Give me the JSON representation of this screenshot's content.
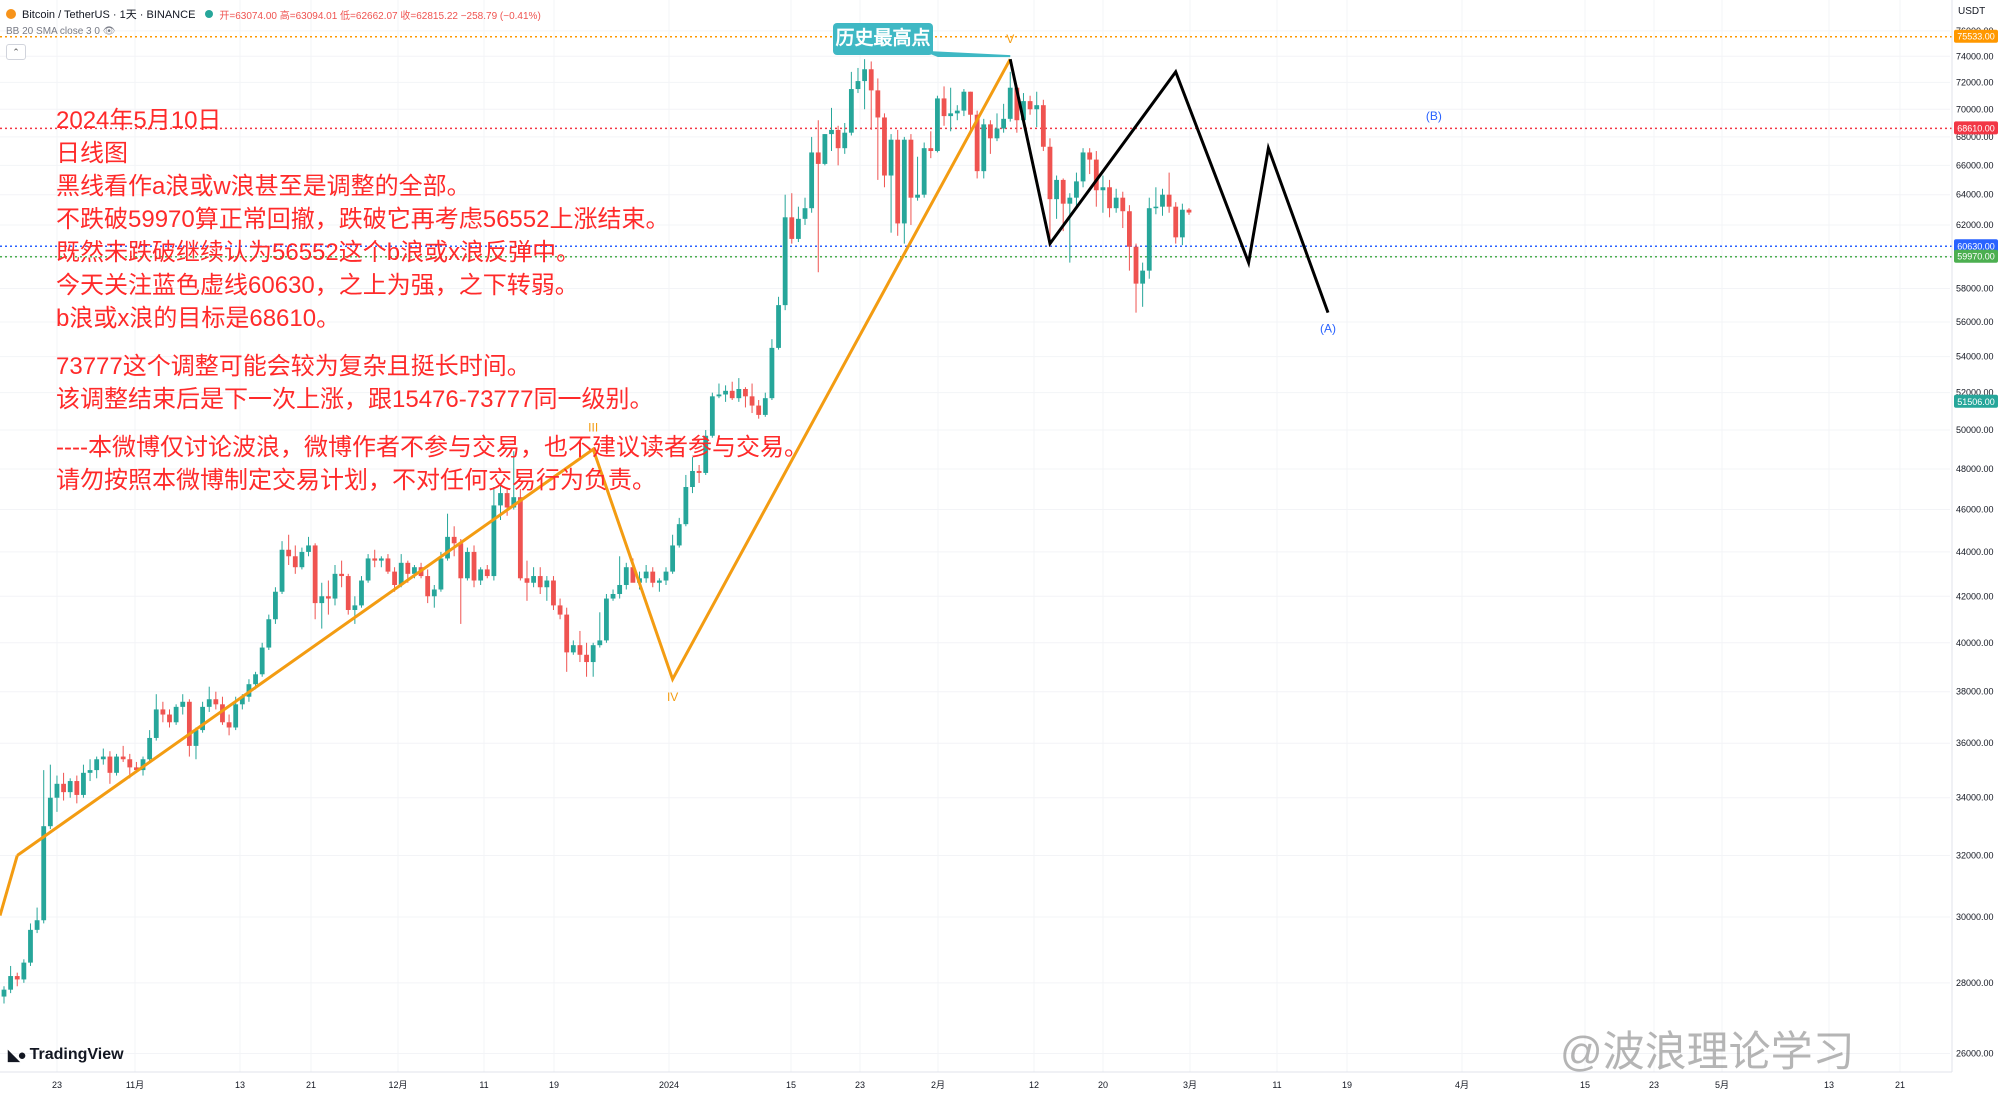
{
  "header": {
    "symbol": "Bitcoin / TetherUS · 1天 · BINANCE",
    "ohlc": "开=63074.00 高=63094.01 低=62662.07 收=62815.22 −258.79 (−0.41%)",
    "indicator": "BB 20 SMA close 3 0",
    "currency": "USDT"
  },
  "notes": [
    "2024年5月10日",
    "日线图",
    "黑线看作a浪或w浪甚至是调整的全部。",
    "不跌破59970算正常回撤，跌破它再考虑56552上涨结束。",
    "既然未跌破继续认为56552这个b浪或x浪反弹中。",
    "今天关注蓝色虚线60630，之上为强，之下转弱。",
    "b浪或x浪的目标是68610。",
    "73777这个调整可能会较为复杂且挺长时间。",
    "该调整结束后是下一次上涨，跟15476-73777同一级别。",
    "----本微博仅讨论波浪，微博作者不参与交易，也不建议读者参与交易。",
    "请勿按照本微博制定交易计划，不对任何交易行为负责。"
  ],
  "callout": "历史最高点",
  "branding": {
    "tradingview": "TradingView",
    "watermark": "@波浪理论学习"
  },
  "colors": {
    "up": "#26a69a",
    "down": "#ef5350",
    "orange": "#f39c12",
    "black": "#000000",
    "teal": "#3fb8c4",
    "red_note": "#ff2a2a",
    "blue_dash": "#2962ff",
    "green_dash": "#4caf50",
    "orange_dash": "#ff9800",
    "red_dash": "#f23645"
  },
  "chart_data": {
    "type": "candlestick",
    "y_scale": "log",
    "ylim": [
      25500,
      78500
    ],
    "y_ticks": [
      26000,
      28000,
      30000,
      32000,
      34000,
      36000,
      38000,
      40000,
      42000,
      44000,
      46000,
      48000,
      50000,
      52000,
      54000,
      56000,
      58000,
      60000,
      62000,
      64000,
      66000,
      68000,
      70000,
      72000,
      74000,
      76000
    ],
    "x_ticks": [
      "23",
      "11月",
      "13",
      "21",
      "12月",
      "11",
      "19",
      "2024",
      "15",
      "23",
      "2月",
      "12",
      "20",
      "3月",
      "11",
      "19",
      "4月",
      "15",
      "23",
      "5月",
      "13",
      "21"
    ],
    "candles_note": "approx. daily OHLC read from chart, Oct 2023 – May 2024",
    "horizontal_lines": [
      {
        "price": 75533,
        "label": "75533.00",
        "style": "orange-dotted"
      },
      {
        "price": 68610,
        "label": "68610.00",
        "style": "red-dotted"
      },
      {
        "price": 60630,
        "label": "60630.00",
        "style": "blue-dotted"
      },
      {
        "price": 59970,
        "label": "59970.00",
        "style": "green-dotted"
      }
    ],
    "price_tags": [
      {
        "price": 51506,
        "label": "51506.00",
        "color": "#26a69a"
      }
    ],
    "wave_labels": [
      "III",
      "IV",
      "V",
      "(A)",
      "(B)"
    ],
    "orange_wave_path": [
      {
        "date": "2023-10-16",
        "price": 32000
      },
      {
        "date": "2024-01-11",
        "price": 49000
      },
      {
        "date": "2024-01-23",
        "price": 38500
      },
      {
        "date": "2024-03-14",
        "price": 73777
      }
    ],
    "black_wave_path": [
      {
        "date": "2024-03-14",
        "price": 73777
      },
      {
        "date": "2024-03-20",
        "price": 60800
      },
      {
        "date": "2024-04-08",
        "price": 72800
      },
      {
        "date": "2024-04-19",
        "price": 59600
      },
      {
        "date": "2024-04-22",
        "price": 67200
      },
      {
        "date": "2024-05-01",
        "price": 56552
      }
    ],
    "callout_target": {
      "date": "2024-03-14",
      "price": 73777
    },
    "candles": [
      [
        27600,
        27900,
        27400,
        27800
      ],
      [
        27800,
        28500,
        27700,
        28200
      ],
      [
        28200,
        28300,
        27900,
        28100
      ],
      [
        28100,
        28700,
        28000,
        28600
      ],
      [
        28600,
        29800,
        28500,
        29600
      ],
      [
        29600,
        30300,
        29500,
        29900
      ],
      [
        29900,
        35000,
        29800,
        33000
      ],
      [
        33000,
        35200,
        32900,
        34000
      ],
      [
        34000,
        34800,
        33500,
        34500
      ],
      [
        34500,
        34900,
        33900,
        34200
      ],
      [
        34200,
        34700,
        34000,
        34600
      ],
      [
        34600,
        34800,
        33800,
        34100
      ],
      [
        34100,
        35200,
        34000,
        34900
      ],
      [
        34900,
        35400,
        34600,
        35000
      ],
      [
        35000,
        35500,
        34700,
        35400
      ],
      [
        35400,
        35800,
        35200,
        35500
      ],
      [
        35500,
        35700,
        34500,
        34900
      ],
      [
        34900,
        35600,
        34800,
        35500
      ],
      [
        35500,
        35900,
        35300,
        35400
      ],
      [
        35400,
        35600,
        34700,
        35100
      ],
      [
        35100,
        35300,
        34900,
        35000
      ],
      [
        35000,
        35500,
        34800,
        35400
      ],
      [
        35400,
        36500,
        35300,
        36200
      ],
      [
        36200,
        37900,
        36100,
        37300
      ],
      [
        37300,
        37600,
        36800,
        37100
      ],
      [
        37100,
        37300,
        36600,
        36800
      ],
      [
        36800,
        37500,
        36700,
        37400
      ],
      [
        37400,
        37900,
        37100,
        37600
      ],
      [
        37600,
        37700,
        35500,
        35900
      ],
      [
        35900,
        36600,
        35400,
        36500
      ],
      [
        36500,
        37600,
        36400,
        37400
      ],
      [
        37400,
        38200,
        37200,
        37700
      ],
      [
        37700,
        38000,
        37300,
        37500
      ],
      [
        37500,
        37800,
        36700,
        36800
      ],
      [
        36800,
        37100,
        36300,
        36600
      ],
      [
        36600,
        37800,
        36500,
        37500
      ],
      [
        37500,
        37900,
        37300,
        37800
      ],
      [
        37800,
        38500,
        37600,
        38300
      ],
      [
        38300,
        38800,
        38100,
        38700
      ],
      [
        38700,
        40000,
        38600,
        39800
      ],
      [
        39800,
        41200,
        39700,
        41000
      ],
      [
        41000,
        42400,
        40800,
        42200
      ],
      [
        42200,
        44500,
        42100,
        44100
      ],
      [
        44100,
        44800,
        43400,
        43800
      ],
      [
        43800,
        44300,
        43000,
        43300
      ],
      [
        43300,
        44200,
        43200,
        44000
      ],
      [
        44000,
        44700,
        43800,
        44300
      ],
      [
        44300,
        44400,
        41000,
        41700
      ],
      [
        41700,
        42600,
        40600,
        42000
      ],
      [
        42000,
        42700,
        41200,
        41900
      ],
      [
        41900,
        43400,
        41600,
        43000
      ],
      [
        43000,
        43600,
        42400,
        42900
      ],
      [
        42900,
        43000,
        41200,
        41400
      ],
      [
        41400,
        42000,
        40800,
        41600
      ],
      [
        41600,
        42900,
        41500,
        42700
      ],
      [
        42700,
        43900,
        42600,
        43700
      ],
      [
        43700,
        44100,
        43300,
        43600
      ],
      [
        43600,
        43800,
        43300,
        43700
      ],
      [
        43700,
        43900,
        43000,
        43100
      ],
      [
        43100,
        43300,
        42200,
        42500
      ],
      [
        42500,
        43900,
        42400,
        43500
      ],
      [
        43500,
        43600,
        42600,
        43000
      ],
      [
        43000,
        43400,
        42800,
        43300
      ],
      [
        43300,
        43500,
        42800,
        42900
      ],
      [
        42900,
        43200,
        41700,
        42000
      ],
      [
        42000,
        42500,
        41500,
        42300
      ],
      [
        42300,
        44000,
        42200,
        43700
      ],
      [
        43700,
        45800,
        43600,
        44700
      ],
      [
        44700,
        45200,
        43800,
        44400
      ],
      [
        44400,
        44600,
        40800,
        42800
      ],
      [
        42800,
        44200,
        42700,
        44000
      ],
      [
        44000,
        44300,
        42400,
        42700
      ],
      [
        42700,
        43300,
        42500,
        43200
      ],
      [
        43200,
        43400,
        42800,
        42900
      ],
      [
        42900,
        47100,
        42700,
        46200
      ],
      [
        46200,
        47300,
        45500,
        46800
      ],
      [
        46800,
        47000,
        45700,
        46100
      ],
      [
        46100,
        48900,
        46000,
        46600
      ],
      [
        46600,
        47000,
        42700,
        42800
      ],
      [
        42800,
        43600,
        41800,
        42600
      ],
      [
        42600,
        43300,
        42400,
        42900
      ],
      [
        42900,
        43300,
        42100,
        42400
      ],
      [
        42400,
        42900,
        41800,
        42700
      ],
      [
        42700,
        42900,
        41400,
        41600
      ],
      [
        41600,
        41900,
        41000,
        41200
      ],
      [
        41200,
        41500,
        38800,
        39600
      ],
      [
        39600,
        40100,
        39500,
        39900
      ],
      [
        39900,
        40500,
        39200,
        39500
      ],
      [
        39500,
        40000,
        38600,
        39200
      ],
      [
        39200,
        40000,
        38600,
        39900
      ],
      [
        39900,
        41300,
        39800,
        40100
      ],
      [
        40100,
        42100,
        40000,
        41900
      ],
      [
        41900,
        42300,
        41800,
        42100
      ],
      [
        42100,
        43800,
        41900,
        42500
      ],
      [
        42500,
        43500,
        42300,
        43300
      ],
      [
        43300,
        43700,
        42800,
        42600
      ],
      [
        42600,
        43100,
        42300,
        42800
      ],
      [
        42800,
        43400,
        42600,
        43100
      ],
      [
        43100,
        43300,
        42400,
        42600
      ],
      [
        42600,
        42800,
        42200,
        42700
      ],
      [
        42700,
        43300,
        42500,
        43100
      ],
      [
        43100,
        44800,
        43000,
        44300
      ],
      [
        44300,
        45600,
        44200,
        45300
      ],
      [
        45300,
        47700,
        45200,
        47100
      ],
      [
        47100,
        48600,
        46800,
        47900
      ],
      [
        47900,
        48200,
        47300,
        47800
      ],
      [
        47800,
        50000,
        47700,
        49700
      ],
      [
        49700,
        52000,
        49600,
        51800
      ],
      [
        51800,
        52500,
        51700,
        51900
      ],
      [
        51900,
        52400,
        51500,
        52100
      ],
      [
        52100,
        52600,
        51600,
        51700
      ],
      [
        51700,
        52800,
        51500,
        52200
      ],
      [
        52200,
        52300,
        51200,
        51800
      ],
      [
        51800,
        52500,
        50900,
        51300
      ],
      [
        51300,
        51600,
        50600,
        50800
      ],
      [
        50800,
        52000,
        50700,
        51700
      ],
      [
        51700,
        55000,
        51600,
        54500
      ],
      [
        54500,
        57500,
        54400,
        57000
      ],
      [
        57000,
        64000,
        56700,
        62500
      ],
      [
        62500,
        64100,
        60800,
        61100
      ],
      [
        61100,
        63200,
        60900,
        62400
      ],
      [
        62400,
        63800,
        62000,
        63100
      ],
      [
        63100,
        68000,
        62800,
        66900
      ],
      [
        66900,
        69200,
        59000,
        66100
      ],
      [
        66100,
        68200,
        66000,
        68200
      ],
      [
        68200,
        70100,
        67000,
        68500
      ],
      [
        68500,
        68800,
        66000,
        67200
      ],
      [
        67200,
        69000,
        66800,
        68300
      ],
      [
        68300,
        72800,
        68100,
        71500
      ],
      [
        71500,
        73100,
        71200,
        72100
      ],
      [
        72100,
        73777,
        70000,
        73000
      ],
      [
        73000,
        73600,
        68500,
        71400
      ],
      [
        71400,
        72300,
        65000,
        69400
      ],
      [
        69400,
        69700,
        64500,
        65300
      ],
      [
        65300,
        68200,
        61500,
        67800
      ],
      [
        67800,
        68500,
        61300,
        62100
      ],
      [
        62100,
        68000,
        60800,
        67800
      ],
      [
        67800,
        68200,
        62000,
        63800
      ],
      [
        63800,
        66600,
        63600,
        64000
      ],
      [
        64000,
        67600,
        63800,
        67200
      ],
      [
        67200,
        68400,
        66500,
        67000
      ],
      [
        67000,
        71000,
        66900,
        70800
      ],
      [
        70800,
        71700,
        68800,
        69500
      ],
      [
        69500,
        71600,
        68400,
        69700
      ],
      [
        69700,
        70300,
        69200,
        69900
      ],
      [
        69900,
        71500,
        69500,
        71300
      ],
      [
        71300,
        71300,
        68200,
        69600
      ],
      [
        69600,
        69900,
        65100,
        65600
      ],
      [
        65600,
        69300,
        65100,
        68900
      ],
      [
        68900,
        69200,
        66800,
        67900
      ],
      [
        67900,
        69700,
        67700,
        68600
      ],
      [
        68600,
        70400,
        68300,
        69300
      ],
      [
        69300,
        72800,
        69100,
        71600
      ],
      [
        71600,
        71800,
        68300,
        69200
      ],
      [
        69200,
        71200,
        68900,
        70600
      ],
      [
        70600,
        71000,
        69600,
        70000
      ],
      [
        70000,
        71300,
        68700,
        70300
      ],
      [
        70300,
        70700,
        67000,
        67300
      ],
      [
        67300,
        67900,
        60600,
        63700
      ],
      [
        63700,
        65300,
        62400,
        65000
      ],
      [
        65000,
        65100,
        61600,
        63400
      ],
      [
        63400,
        64100,
        59600,
        63800
      ],
      [
        63800,
        65500,
        63100,
        64900
      ],
      [
        64900,
        67200,
        64500,
        66900
      ],
      [
        66900,
        67200,
        65400,
        66400
      ],
      [
        66400,
        67000,
        63200,
        64300
      ],
      [
        64300,
        65300,
        62800,
        64500
      ],
      [
        64500,
        65000,
        62500,
        63100
      ],
      [
        63100,
        64400,
        62800,
        63800
      ],
      [
        63800,
        64200,
        61800,
        62900
      ],
      [
        62900,
        63300,
        59100,
        60600
      ],
      [
        60600,
        60800,
        56552,
        58300
      ],
      [
        58300,
        59600,
        56900,
        59100
      ],
      [
        59100,
        63800,
        58600,
        63100
      ],
      [
        63100,
        64500,
        62700,
        63200
      ],
      [
        63200,
        64400,
        62600,
        64000
      ],
      [
        64000,
        65500,
        62800,
        63200
      ],
      [
        63200,
        63500,
        60800,
        61200
      ],
      [
        61200,
        63400,
        60700,
        63000
      ],
      [
        63000,
        63100,
        62662,
        62815
      ]
    ]
  }
}
